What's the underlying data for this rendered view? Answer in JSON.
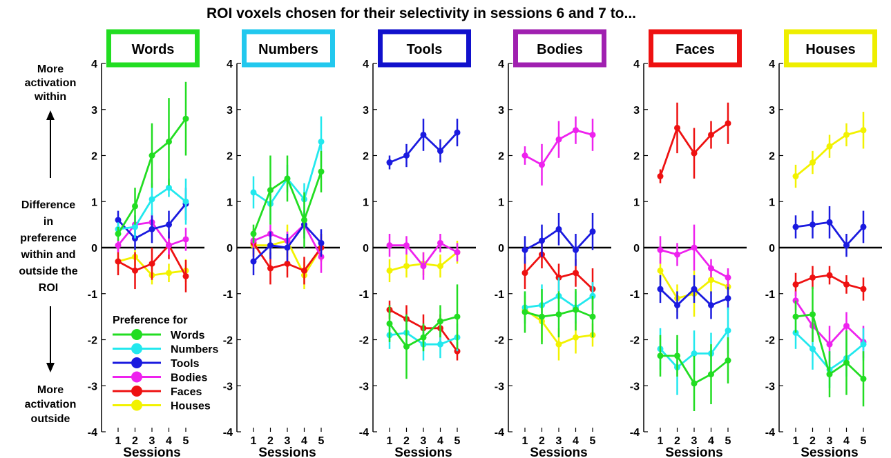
{
  "figure": {
    "title": "ROI voxels chosen for their selectivity in sessions 6 and 7 to...",
    "y_axis_top_note": [
      "More",
      "activation",
      "within"
    ],
    "y_axis_center_label": [
      "Difference",
      "in",
      "preference",
      "within and",
      "outside the",
      "ROI"
    ],
    "y_axis_bottom_note": [
      "More",
      "activation",
      "outside"
    ],
    "legend_title": "Preference for"
  },
  "colors": {
    "Words": "#22dd22",
    "Numbers": "#22e8ee",
    "Tools": "#1a1adf",
    "Bodies": "#ee22ee",
    "Faces": "#ee1111",
    "Houses": "#f2f200",
    "Words_box": "#22dd22",
    "Numbers_box": "#22c8ee",
    "Tools_box": "#1111cc",
    "Bodies_box": "#a020b0",
    "Faces_box": "#ee1111",
    "Houses_box": "#eeee00"
  },
  "chart_data": [
    {
      "type": "line",
      "title": "Words",
      "xlabel": "Sessions",
      "ylabel": "",
      "x": [
        1,
        2,
        3,
        4,
        5
      ],
      "ylim": [
        -4,
        4
      ],
      "yticks": [
        -4,
        -3,
        -2,
        -1,
        0,
        1,
        2,
        3,
        4
      ],
      "series": [
        {
          "name": "Words",
          "values": [
            0.3,
            0.9,
            2.0,
            2.3,
            2.8
          ],
          "err": [
            0.15,
            0.4,
            0.7,
            0.95,
            0.8
          ]
        },
        {
          "name": "Numbers",
          "values": [
            0.4,
            0.45,
            1.05,
            1.3,
            1.0
          ],
          "err": [
            0.15,
            0.25,
            0.35,
            0.2,
            0.5
          ]
        },
        {
          "name": "Tools",
          "values": [
            0.6,
            0.2,
            0.4,
            0.5,
            0.95
          ],
          "err": [
            0.2,
            0.25,
            0.3,
            0.3,
            0.35
          ]
        },
        {
          "name": "Bodies",
          "values": [
            0.05,
            0.5,
            0.55,
            0.05,
            0.18
          ],
          "err": [
            0.15,
            0.2,
            0.2,
            0.2,
            0.25
          ]
        },
        {
          "name": "Faces",
          "values": [
            -0.3,
            -0.5,
            -0.35,
            0.05,
            -0.62
          ],
          "err": [
            0.3,
            0.4,
            0.35,
            0.3,
            0.35
          ]
        },
        {
          "name": "Houses",
          "values": [
            -0.3,
            -0.2,
            -0.6,
            -0.55,
            -0.5
          ],
          "err": [
            0.2,
            0.2,
            0.2,
            0.2,
            0.25
          ]
        }
      ]
    },
    {
      "type": "line",
      "title": "Numbers",
      "xlabel": "Sessions",
      "ylabel": "",
      "x": [
        1,
        2,
        3,
        4,
        5
      ],
      "ylim": [
        -4,
        4
      ],
      "yticks": [
        -4,
        -3,
        -2,
        -1,
        0,
        1,
        2,
        3,
        4
      ],
      "series": [
        {
          "name": "Words",
          "values": [
            0.3,
            1.25,
            1.5,
            0.6,
            1.65
          ],
          "err": [
            0.2,
            0.75,
            0.5,
            0.6,
            0.45
          ]
        },
        {
          "name": "Numbers",
          "values": [
            1.2,
            0.95,
            1.5,
            1.05,
            2.3
          ],
          "err": [
            0.35,
            0.35,
            0.3,
            0.35,
            0.55
          ]
        },
        {
          "name": "Tools",
          "values": [
            -0.3,
            0.05,
            0.0,
            0.5,
            0.1
          ],
          "err": [
            0.3,
            0.3,
            0.3,
            0.3,
            0.3
          ]
        },
        {
          "name": "Bodies",
          "values": [
            0.15,
            0.3,
            0.15,
            0.5,
            -0.2
          ],
          "err": [
            0.2,
            0.2,
            0.2,
            0.2,
            0.35
          ]
        },
        {
          "name": "Faces",
          "values": [
            0.1,
            -0.45,
            -0.35,
            -0.5,
            0.0
          ],
          "err": [
            0.3,
            0.35,
            0.3,
            0.3,
            0.3
          ]
        },
        {
          "name": "Houses",
          "values": [
            0.05,
            0.05,
            0.15,
            -0.6,
            0.0
          ],
          "err": [
            0.2,
            0.2,
            0.35,
            0.3,
            0.3
          ]
        }
      ]
    },
    {
      "type": "line",
      "title": "Tools",
      "xlabel": "Sessions",
      "ylabel": "",
      "x": [
        1,
        2,
        3,
        4,
        5
      ],
      "ylim": [
        -4,
        4
      ],
      "yticks": [
        -4,
        -3,
        -2,
        -1,
        0,
        1,
        2,
        3,
        4
      ],
      "series": [
        {
          "name": "Words",
          "values": [
            -1.65,
            -2.15,
            -1.95,
            -1.6,
            -1.5
          ],
          "err": [
            0.4,
            0.7,
            0.3,
            0.35,
            0.7
          ]
        },
        {
          "name": "Numbers",
          "values": [
            -1.9,
            -1.85,
            -2.1,
            -2.1,
            -1.95
          ],
          "err": [
            0.3,
            0.3,
            0.35,
            0.3,
            0.3
          ]
        },
        {
          "name": "Tools",
          "values": [
            1.85,
            2.0,
            2.45,
            2.1,
            2.5
          ],
          "err": [
            0.15,
            0.25,
            0.35,
            0.25,
            0.3
          ]
        },
        {
          "name": "Bodies",
          "values": [
            0.05,
            0.05,
            -0.4,
            0.1,
            -0.1
          ],
          "err": [
            0.25,
            0.2,
            0.3,
            0.2,
            0.2
          ]
        },
        {
          "name": "Faces",
          "values": [
            -1.35,
            -1.55,
            -1.75,
            -1.75,
            -2.25
          ],
          "err": [
            0.2,
            0.3,
            0.3,
            0.3,
            0.2
          ]
        },
        {
          "name": "Houses",
          "values": [
            -0.5,
            -0.4,
            -0.35,
            -0.4,
            -0.1
          ],
          "err": [
            0.25,
            0.25,
            0.25,
            0.25,
            0.25
          ]
        }
      ]
    },
    {
      "type": "line",
      "title": "Bodies",
      "xlabel": "Sessions",
      "ylabel": "",
      "x": [
        1,
        2,
        3,
        4,
        5
      ],
      "ylim": [
        -4,
        4
      ],
      "yticks": [
        -4,
        -3,
        -2,
        -1,
        0,
        1,
        2,
        3,
        4
      ],
      "series": [
        {
          "name": "Words",
          "values": [
            -1.4,
            -1.5,
            -1.45,
            -1.35,
            -1.5
          ],
          "err": [
            0.45,
            0.6,
            0.5,
            0.45,
            0.45
          ]
        },
        {
          "name": "Numbers",
          "values": [
            -1.3,
            -1.25,
            -1.05,
            -1.3,
            -1.05
          ],
          "err": [
            0.35,
            0.45,
            0.4,
            0.35,
            0.3
          ]
        },
        {
          "name": "Tools",
          "values": [
            -0.05,
            0.15,
            0.4,
            -0.05,
            0.35
          ],
          "err": [
            0.3,
            0.35,
            0.35,
            0.35,
            0.4
          ]
        },
        {
          "name": "Bodies",
          "values": [
            2.0,
            1.8,
            2.35,
            2.55,
            2.45
          ],
          "err": [
            0.2,
            0.45,
            0.4,
            0.3,
            0.35
          ]
        },
        {
          "name": "Faces",
          "values": [
            -0.55,
            -0.15,
            -0.65,
            -0.55,
            -0.9
          ],
          "err": [
            0.35,
            0.3,
            0.3,
            0.3,
            0.45
          ]
        },
        {
          "name": "Houses",
          "values": [
            -1.35,
            -1.6,
            -2.1,
            -1.95,
            -1.9
          ],
          "err": [
            0.3,
            0.45,
            0.35,
            0.35,
            0.25
          ]
        }
      ]
    },
    {
      "type": "line",
      "title": "Faces",
      "xlabel": "Sessions",
      "ylabel": "",
      "x": [
        1,
        2,
        3,
        4,
        5
      ],
      "ylim": [
        -4,
        4
      ],
      "yticks": [
        -4,
        -3,
        -2,
        -1,
        0,
        1,
        2,
        3,
        4
      ],
      "series": [
        {
          "name": "Words",
          "values": [
            -2.35,
            -2.35,
            -2.95,
            -2.75,
            -2.45
          ],
          "err": [
            0.45,
            0.45,
            0.6,
            0.65,
            0.5
          ]
        },
        {
          "name": "Numbers",
          "values": [
            -2.2,
            -2.6,
            -2.3,
            -2.3,
            -1.8
          ],
          "err": [
            0.45,
            0.6,
            0.5,
            0.45,
            0.5
          ]
        },
        {
          "name": "Tools",
          "values": [
            -0.9,
            -1.25,
            -0.9,
            -1.25,
            -1.1
          ],
          "err": [
            0.3,
            0.3,
            0.3,
            0.3,
            0.25
          ]
        },
        {
          "name": "Bodies",
          "values": [
            -0.05,
            -0.15,
            0.0,
            -0.45,
            -0.65
          ],
          "err": [
            0.3,
            0.25,
            0.5,
            0.2,
            0.2
          ]
        },
        {
          "name": "Faces",
          "values": [
            1.55,
            2.6,
            2.05,
            2.45,
            2.7
          ],
          "err": [
            0.15,
            0.55,
            0.55,
            0.3,
            0.45
          ]
        },
        {
          "name": "Houses",
          "values": [
            -0.5,
            -1.1,
            -1.0,
            -0.7,
            -0.85
          ],
          "err": [
            0.3,
            0.3,
            0.5,
            0.3,
            0.3
          ]
        }
      ]
    },
    {
      "type": "line",
      "title": "Houses",
      "xlabel": "Sessions",
      "ylabel": "",
      "x": [
        1,
        2,
        3,
        4,
        5
      ],
      "ylim": [
        -4,
        4
      ],
      "yticks": [
        -4,
        -3,
        -2,
        -1,
        0,
        1,
        2,
        3,
        4
      ],
      "series": [
        {
          "name": "Words",
          "values": [
            -1.5,
            -1.45,
            -2.75,
            -2.5,
            -2.85
          ],
          "err": [
            0.35,
            0.6,
            0.5,
            0.7,
            0.6
          ]
        },
        {
          "name": "Numbers",
          "values": [
            -1.85,
            -2.2,
            -2.65,
            -2.4,
            -2.1
          ],
          "err": [
            0.35,
            0.45,
            0.4,
            0.4,
            0.35
          ]
        },
        {
          "name": "Tools",
          "values": [
            0.45,
            0.5,
            0.55,
            0.05,
            0.45
          ],
          "err": [
            0.25,
            0.3,
            0.35,
            0.25,
            0.35
          ]
        },
        {
          "name": "Bodies",
          "values": [
            -1.15,
            -1.7,
            -2.1,
            -1.7,
            -2.05
          ],
          "err": [
            0.2,
            0.35,
            0.4,
            0.3,
            0.35
          ]
        },
        {
          "name": "Faces",
          "values": [
            -0.8,
            -0.65,
            -0.6,
            -0.8,
            -0.9
          ],
          "err": [
            0.25,
            0.25,
            0.2,
            0.2,
            0.25
          ]
        },
        {
          "name": "Houses",
          "values": [
            1.55,
            1.85,
            2.2,
            2.45,
            2.55
          ],
          "err": [
            0.25,
            0.25,
            0.25,
            0.25,
            0.4
          ]
        }
      ]
    }
  ]
}
